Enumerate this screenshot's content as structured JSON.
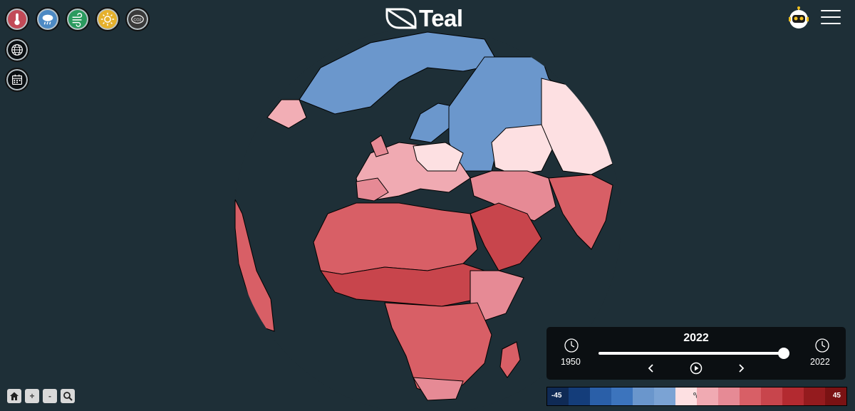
{
  "app": {
    "logo_text": "Teal"
  },
  "layer_buttons": [
    {
      "name": "temperature-layer-button",
      "icon": "thermometer-icon",
      "color": "#c24a57",
      "active": true
    },
    {
      "name": "precipitation-layer-button",
      "icon": "rain-cloud-icon",
      "color": "#4d8ac4"
    },
    {
      "name": "wind-layer-button",
      "icon": "wind-icon",
      "color": "#2a9a5e"
    },
    {
      "name": "sun-layer-button",
      "icon": "sun-icon",
      "color": "#e5b02b"
    },
    {
      "name": "co2-layer-button",
      "icon": "co2-cloud-icon",
      "color": "#3a3a3a",
      "label": "CO2"
    }
  ],
  "timeline": {
    "current_year": "2022",
    "start_year": "1950",
    "end_year": "2022",
    "progress": 1.0
  },
  "legend": {
    "min_label": "-45",
    "max_label": "45",
    "unit_icon": "celsius-icon",
    "colors": [
      "#0f2a55",
      "#143d7a",
      "#2a5fa8",
      "#3c74bd",
      "#6a96cc",
      "#7ba3d4",
      "#fde0e2",
      "#f0aab2",
      "#e68a95",
      "#d85f66",
      "#c8454c",
      "#b32a30",
      "#941b1e",
      "#7a1213"
    ]
  },
  "bottom_controls": [
    "home-icon",
    "+",
    "-",
    "search-icon"
  ]
}
